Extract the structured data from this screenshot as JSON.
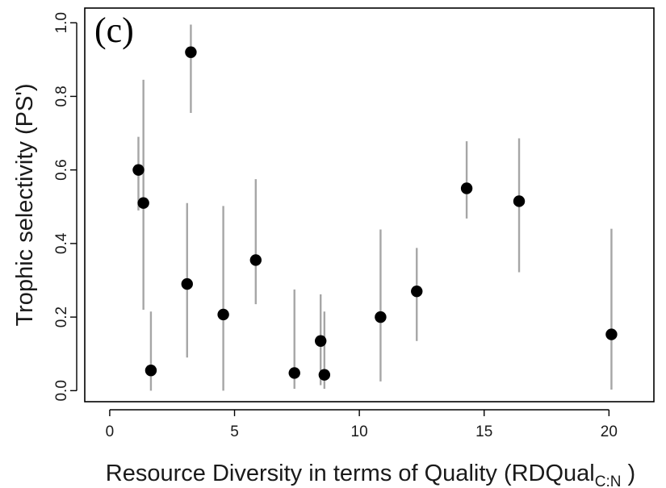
{
  "chart_data": {
    "type": "scatter",
    "panel_label": "(c)",
    "title": "",
    "xlabel": "Resource Diversity in terms of Quality (RDQual",
    "xlabel_sub": "C:N",
    "xlabel_close": " )",
    "ylabel": "Trophic selectivity (PS')",
    "xlim": [
      -1.0,
      21.8
    ],
    "ylim": [
      -0.03,
      1.04
    ],
    "xticks": [
      0,
      5,
      10,
      15,
      20
    ],
    "xtick_labels": [
      "0",
      "5",
      "10",
      "15",
      "20"
    ],
    "yticks": [
      0.0,
      0.2,
      0.4,
      0.6,
      0.8,
      1.0
    ],
    "ytick_labels": [
      "0.0",
      "0.2",
      "0.4",
      "0.6",
      "0.8",
      "1.0"
    ],
    "grid": false,
    "legend": "none",
    "point_color": "#000000",
    "errorbar_color": "#a6a6a6",
    "points": [
      {
        "x": 1.15,
        "y": 0.6,
        "ylow": 0.49,
        "yhigh": 0.69
      },
      {
        "x": 1.35,
        "y": 0.51,
        "ylow": 0.22,
        "yhigh": 0.845
      },
      {
        "x": 1.65,
        "y": 0.055,
        "ylow": 0.0,
        "yhigh": 0.215
      },
      {
        "x": 3.1,
        "y": 0.29,
        "ylow": 0.09,
        "yhigh": 0.51
      },
      {
        "x": 3.25,
        "y": 0.92,
        "ylow": 0.755,
        "yhigh": 0.995
      },
      {
        "x": 4.55,
        "y": 0.207,
        "ylow": 0.0,
        "yhigh": 0.502
      },
      {
        "x": 5.85,
        "y": 0.355,
        "ylow": 0.235,
        "yhigh": 0.575
      },
      {
        "x": 7.4,
        "y": 0.048,
        "ylow": 0.005,
        "yhigh": 0.275
      },
      {
        "x": 8.45,
        "y": 0.135,
        "ylow": 0.015,
        "yhigh": 0.262
      },
      {
        "x": 8.6,
        "y": 0.043,
        "ylow": 0.005,
        "yhigh": 0.215
      },
      {
        "x": 10.85,
        "y": 0.2,
        "ylow": 0.025,
        "yhigh": 0.438
      },
      {
        "x": 12.3,
        "y": 0.27,
        "ylow": 0.135,
        "yhigh": 0.388
      },
      {
        "x": 14.3,
        "y": 0.55,
        "ylow": 0.468,
        "yhigh": 0.678
      },
      {
        "x": 16.4,
        "y": 0.515,
        "ylow": 0.322,
        "yhigh": 0.686
      },
      {
        "x": 20.1,
        "y": 0.153,
        "ylow": 0.003,
        "yhigh": 0.44
      }
    ]
  }
}
